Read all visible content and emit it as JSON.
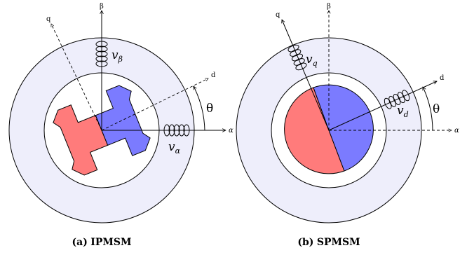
{
  "colors": {
    "stator": "#eeeefb",
    "rotor_red": "#ff7b7b",
    "rotor_blue": "#7b7bff",
    "stroke": "#000000"
  },
  "panels": [
    {
      "id": "a",
      "caption_tag": "(a)",
      "caption_name": "IPMSM",
      "axes": {
        "alpha": "α",
        "beta": "β",
        "d": "d",
        "q": "q"
      },
      "voltages": {
        "beta": {
          "main": "v",
          "sub": "β"
        },
        "alpha": {
          "main": "v",
          "sub": "α"
        }
      },
      "angle": "θ"
    },
    {
      "id": "b",
      "caption_tag": "(b)",
      "caption_name": "SPMSM",
      "axes": {
        "alpha": "α",
        "beta": "β",
        "d": "d",
        "q": "q"
      },
      "voltages": {
        "q": {
          "main": "v",
          "sub": "q"
        },
        "d": {
          "main": "v",
          "sub": "d"
        }
      },
      "angle": "θ"
    }
  ]
}
